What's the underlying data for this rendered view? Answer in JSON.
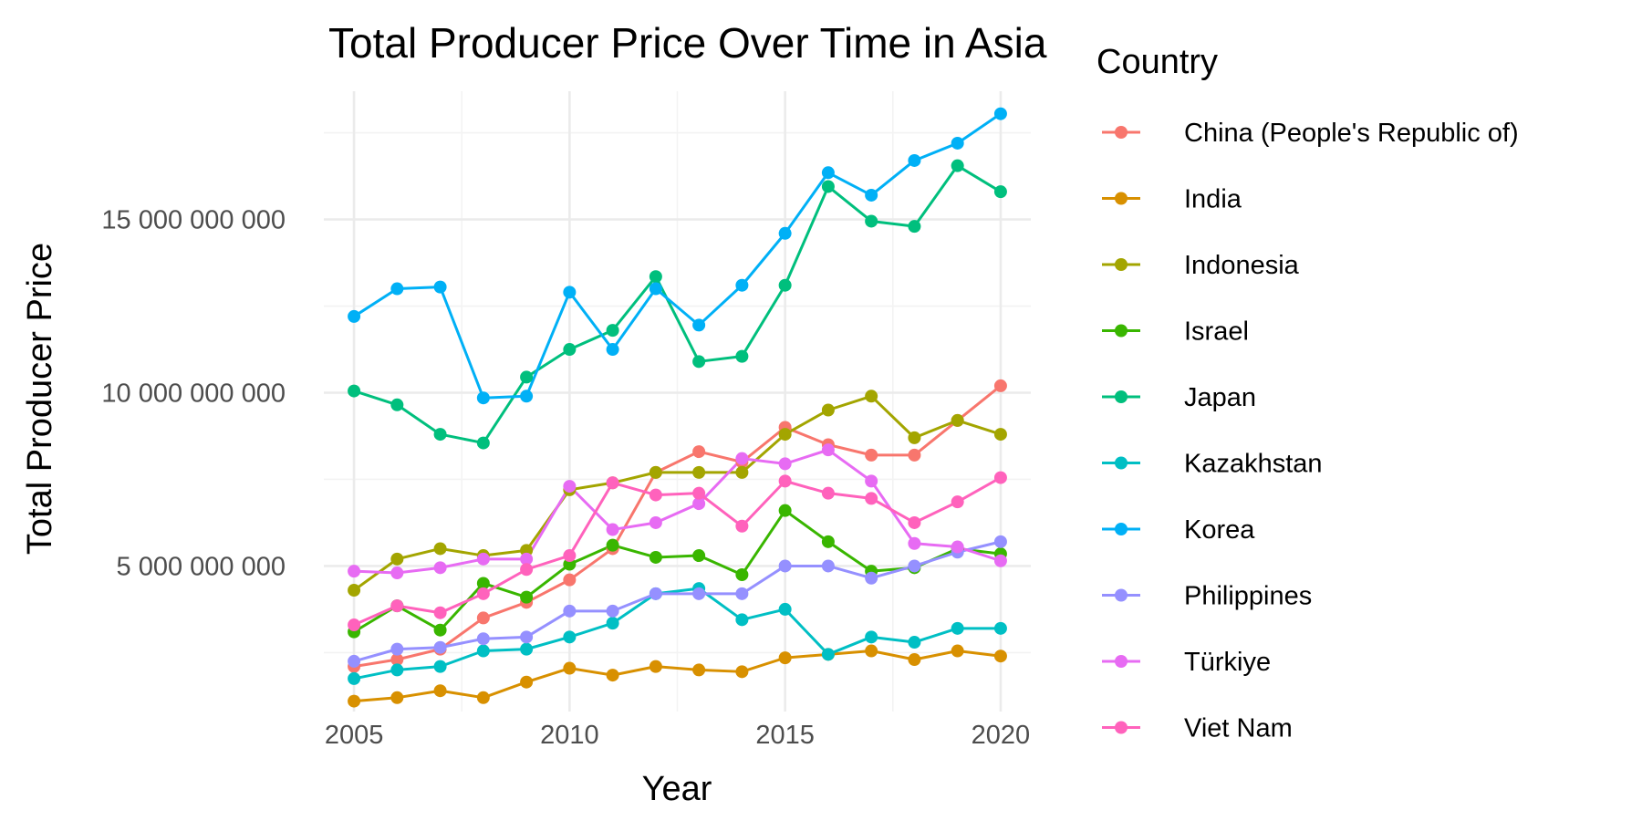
{
  "chart_data": {
    "type": "line",
    "title": "Total Producer Price Over Time in Asia",
    "xlabel": "Year",
    "ylabel": "Total Producer Price",
    "xlim": [
      2004.3,
      2020.7
    ],
    "ylim": [
      800000000,
      18700000000
    ],
    "x_ticks": [
      2005,
      2010,
      2015,
      2020
    ],
    "x_tick_labels": [
      "2005",
      "2010",
      "2015",
      "2020"
    ],
    "y_ticks": [
      5000000000,
      10000000000,
      15000000000
    ],
    "y_tick_labels": [
      "5 000 000 000",
      "10 000 000 000",
      "15 000 000 000"
    ],
    "grid": true,
    "legend": {
      "title": "Country",
      "position": "right"
    },
    "x": [
      2005,
      2006,
      2007,
      2008,
      2009,
      2010,
      2011,
      2012,
      2013,
      2014,
      2015,
      2016,
      2017,
      2018,
      2019,
      2020
    ],
    "series": [
      {
        "name": "China (People's Republic of)",
        "color": "#F8766D",
        "values": [
          2100000000,
          2300000000,
          2600000000,
          3500000000,
          3950000000,
          4600000000,
          5500000000,
          7700000000,
          8300000000,
          8000000000,
          9000000000,
          8500000000,
          8200000000,
          8200000000,
          9200000000,
          10200000000
        ]
      },
      {
        "name": "India",
        "color": "#D89000",
        "values": [
          1100000000,
          1200000000,
          1400000000,
          1200000000,
          1650000000,
          2050000000,
          1850000000,
          2100000000,
          2000000000,
          1950000000,
          2350000000,
          2450000000,
          2550000000,
          2300000000,
          2550000000,
          2400000000
        ]
      },
      {
        "name": "Indonesia",
        "color": "#A3A500",
        "values": [
          4300000000,
          5200000000,
          5500000000,
          5300000000,
          5450000000,
          7200000000,
          7400000000,
          7700000000,
          7700000000,
          7700000000,
          8800000000,
          9500000000,
          9900000000,
          8700000000,
          9200000000,
          8800000000
        ]
      },
      {
        "name": "Israel",
        "color": "#39B600",
        "values": [
          3100000000,
          3850000000,
          3150000000,
          4500000000,
          4100000000,
          5050000000,
          5600000000,
          5250000000,
          5300000000,
          4750000000,
          6600000000,
          5700000000,
          4850000000,
          4950000000,
          5500000000,
          5350000000
        ]
      },
      {
        "name": "Japan",
        "color": "#00BF7D",
        "values": [
          10050000000,
          9650000000,
          8800000000,
          8550000000,
          10450000000,
          11250000000,
          11800000000,
          13350000000,
          10900000000,
          11050000000,
          13100000000,
          15950000000,
          14950000000,
          14800000000,
          16550000000,
          15800000000
        ]
      },
      {
        "name": "Kazakhstan",
        "color": "#00BFC4",
        "values": [
          1750000000,
          2000000000,
          2100000000,
          2550000000,
          2600000000,
          2950000000,
          3350000000,
          4200000000,
          4350000000,
          3450000000,
          3750000000,
          2450000000,
          2950000000,
          2800000000,
          3200000000,
          3200000000
        ]
      },
      {
        "name": "Korea",
        "color": "#00B0F6",
        "values": [
          12200000000,
          13000000000,
          13050000000,
          9850000000,
          9900000000,
          12900000000,
          11250000000,
          13000000000,
          11950000000,
          13100000000,
          14600000000,
          16350000000,
          15700000000,
          16700000000,
          17200000000,
          18050000000
        ]
      },
      {
        "name": "Philippines",
        "color": "#9590FF",
        "values": [
          2250000000,
          2600000000,
          2650000000,
          2900000000,
          2950000000,
          3700000000,
          3700000000,
          4200000000,
          4200000000,
          4200000000,
          5000000000,
          5000000000,
          4650000000,
          5000000000,
          5400000000,
          5700000000
        ]
      },
      {
        "name": "Türkiye",
        "color": "#E76BF3",
        "values": [
          4850000000,
          4800000000,
          4950000000,
          5200000000,
          5200000000,
          7300000000,
          6050000000,
          6250000000,
          6800000000,
          8100000000,
          7950000000,
          8350000000,
          7450000000,
          5650000000,
          5550000000,
          5150000000
        ]
      },
      {
        "name": "Viet Nam",
        "color": "#FF62BC",
        "values": [
          3300000000,
          3850000000,
          3650000000,
          4200000000,
          4900000000,
          5300000000,
          7400000000,
          7050000000,
          7100000000,
          6150000000,
          7450000000,
          7100000000,
          6950000000,
          6250000000,
          6850000000,
          7550000000
        ]
      }
    ]
  }
}
